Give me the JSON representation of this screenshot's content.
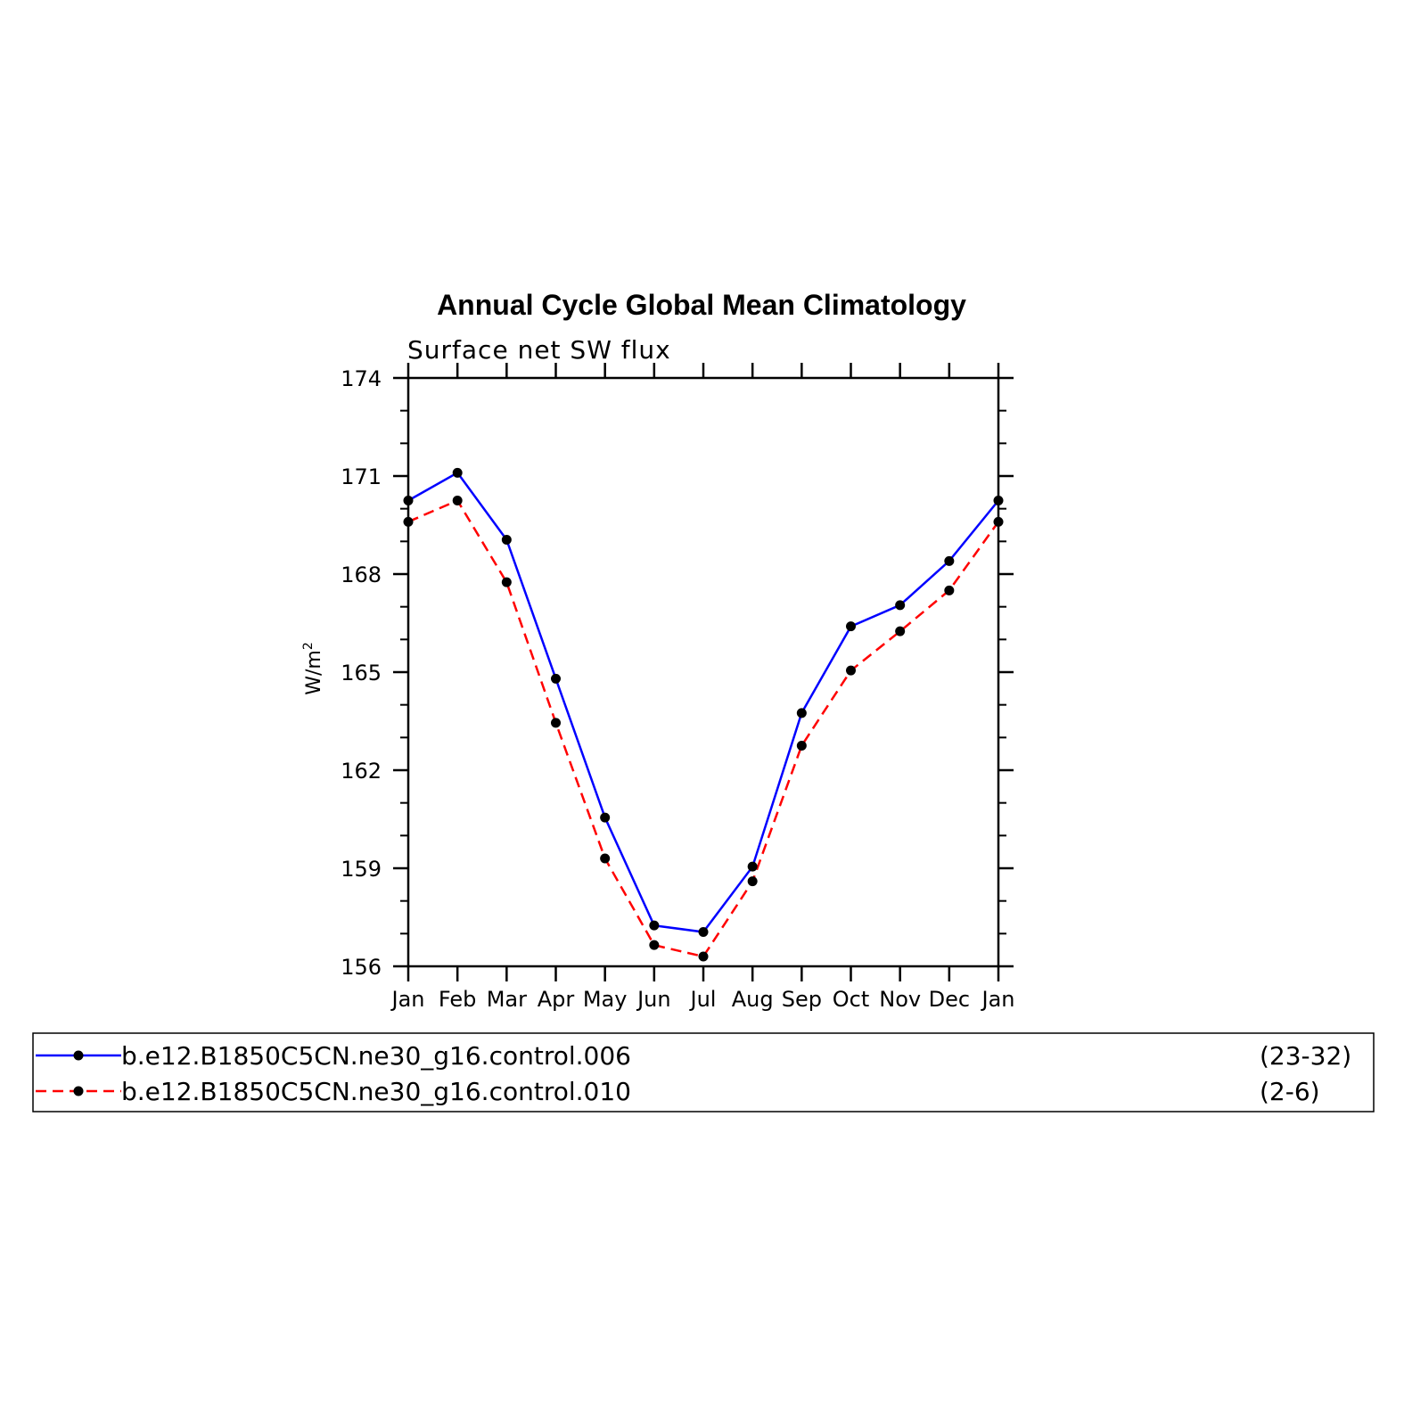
{
  "chart_data": {
    "type": "line",
    "title": "Annual Cycle Global Mean Climatology",
    "subtitle": "Surface net SW flux",
    "ylabel": "W/m",
    "ylabel_sup": "2",
    "categories": [
      "Jan",
      "Feb",
      "Mar",
      "Apr",
      "May",
      "Jun",
      "Jul",
      "Aug",
      "Sep",
      "Oct",
      "Nov",
      "Dec",
      "Jan"
    ],
    "ylim": [
      156,
      174
    ],
    "yticks": [
      156,
      159,
      162,
      165,
      168,
      171,
      174
    ],
    "y_minor_step": 1,
    "series": [
      {
        "name": "b.e12.B1850C5CN.ne30_g16.control.006",
        "years": "(23-32)",
        "color": "#0000ff",
        "dash": "solid",
        "values": [
          170.25,
          171.1,
          169.05,
          164.8,
          160.55,
          157.25,
          157.05,
          159.05,
          163.75,
          166.4,
          167.05,
          168.4,
          170.25
        ]
      },
      {
        "name": "b.e12.B1850C5CN.ne30_g16.control.010",
        "years": "(2-6)",
        "color": "#ff0000",
        "dash": "dashed",
        "values": [
          169.6,
          170.25,
          167.75,
          163.45,
          159.3,
          156.65,
          156.3,
          158.6,
          162.75,
          165.05,
          166.25,
          167.5,
          169.6
        ]
      }
    ],
    "legend_position": "bottom"
  }
}
